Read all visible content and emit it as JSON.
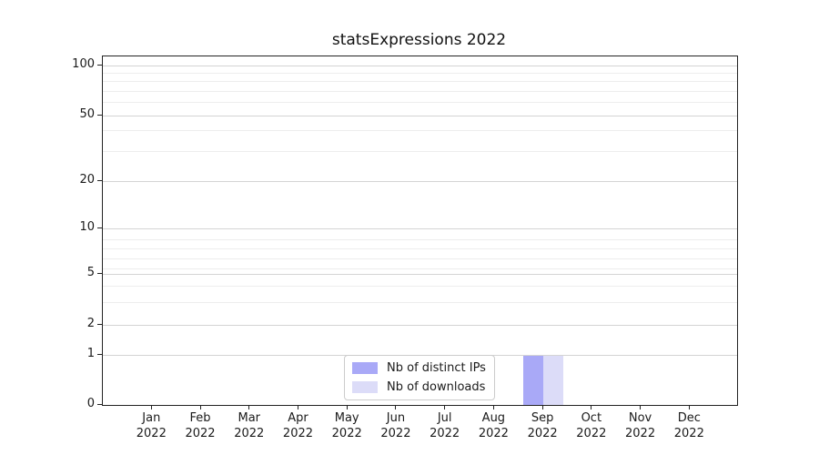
{
  "title": "statsExpressions 2022",
  "colors": {
    "bar_distinct_ips": "#a9a9f7",
    "bar_downloads": "#dcdcf8",
    "grid_major": "#d4d4d4",
    "grid_minor": "#ededed",
    "axis": "#222222"
  },
  "legend": {
    "items": [
      {
        "label": "Nb of distinct IPs",
        "color": "#a9a9f7"
      },
      {
        "label": "Nb of downloads",
        "color": "#dcdcf8"
      }
    ]
  },
  "y_axis": {
    "tick_labels": [
      "100",
      "50",
      "20",
      "10",
      "5",
      "2",
      "1",
      "0"
    ]
  },
  "x_axis": {
    "ticks": [
      {
        "month": "Jan",
        "year": "2022"
      },
      {
        "month": "Feb",
        "year": "2022"
      },
      {
        "month": "Mar",
        "year": "2022"
      },
      {
        "month": "Apr",
        "year": "2022"
      },
      {
        "month": "May",
        "year": "2022"
      },
      {
        "month": "Jun",
        "year": "2022"
      },
      {
        "month": "Jul",
        "year": "2022"
      },
      {
        "month": "Aug",
        "year": "2022"
      },
      {
        "month": "Sep",
        "year": "2022"
      },
      {
        "month": "Oct",
        "year": "2022"
      },
      {
        "month": "Nov",
        "year": "2022"
      },
      {
        "month": "Dec",
        "year": "2022"
      }
    ]
  },
  "chart_data": {
    "type": "bar",
    "title": "statsExpressions 2022",
    "categories": [
      "Jan 2022",
      "Feb 2022",
      "Mar 2022",
      "Apr 2022",
      "May 2022",
      "Jun 2022",
      "Jul 2022",
      "Aug 2022",
      "Sep 2022",
      "Oct 2022",
      "Nov 2022",
      "Dec 2022"
    ],
    "series": [
      {
        "name": "Nb of distinct IPs",
        "color": "#a9a9f7",
        "values": [
          0,
          0,
          0,
          0,
          0,
          0,
          0,
          0,
          1,
          0,
          0,
          0
        ]
      },
      {
        "name": "Nb of downloads",
        "color": "#dcdcf8",
        "values": [
          0,
          0,
          0,
          0,
          0,
          0,
          0,
          0,
          1,
          0,
          0,
          0
        ]
      }
    ],
    "xlabel": "",
    "ylabel": "",
    "yscale": "log (1-2-5 ticks) with 0 baseline",
    "yticks": [
      0,
      1,
      2,
      5,
      10,
      20,
      50,
      100
    ],
    "ylim": [
      0,
      110
    ],
    "grid": "horizontal, major and minor log gridlines",
    "legend_position": "inside plot, bottom center"
  }
}
